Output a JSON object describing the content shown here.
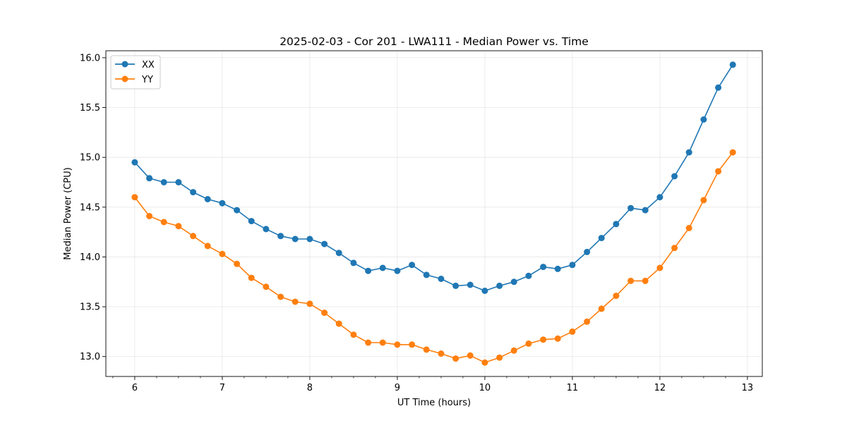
{
  "chart_data": {
    "type": "line",
    "title": "2025-02-03 - Cor 201 - LWA111 - Median Power vs. Time",
    "xlabel": "UT Time (hours)",
    "ylabel": "Median Power (CPU)",
    "xlim": [
      5.67,
      13.17
    ],
    "ylim": [
      12.8,
      16.07
    ],
    "grid": true,
    "legend_position": "top-left",
    "x_ticks": [
      6,
      7,
      8,
      9,
      10,
      11,
      12,
      13
    ],
    "y_ticks": [
      13.0,
      13.5,
      14.0,
      14.5,
      15.0,
      15.5,
      16.0
    ],
    "y_tick_labels": [
      "13.0",
      "13.5",
      "14.0",
      "14.5",
      "15.0",
      "15.5",
      "16.0"
    ],
    "x": [
      6.0,
      6.167,
      6.333,
      6.5,
      6.667,
      6.833,
      7.0,
      7.167,
      7.333,
      7.5,
      7.667,
      7.833,
      8.0,
      8.167,
      8.333,
      8.5,
      8.667,
      8.833,
      9.0,
      9.167,
      9.333,
      9.5,
      9.667,
      9.833,
      10.0,
      10.167,
      10.333,
      10.5,
      10.667,
      10.833,
      11.0,
      11.167,
      11.333,
      11.5,
      11.667,
      11.833,
      12.0,
      12.167,
      12.333,
      12.5,
      12.667,
      12.833
    ],
    "series": [
      {
        "name": "XX",
        "color": "#1f77b4",
        "values": [
          14.95,
          14.79,
          14.75,
          14.75,
          14.65,
          14.58,
          14.54,
          14.47,
          14.36,
          14.28,
          14.21,
          14.18,
          14.18,
          14.13,
          14.04,
          13.94,
          13.86,
          13.89,
          13.86,
          13.92,
          13.82,
          13.78,
          13.71,
          13.72,
          13.66,
          13.71,
          13.75,
          13.81,
          13.9,
          13.88,
          13.92,
          14.05,
          14.19,
          14.33,
          14.49,
          14.47,
          14.6,
          14.81,
          15.05,
          15.38,
          15.7,
          15.93
        ]
      },
      {
        "name": "YY",
        "color": "#ff7f0e",
        "values": [
          14.6,
          14.41,
          14.35,
          14.31,
          14.21,
          14.11,
          14.03,
          13.93,
          13.79,
          13.7,
          13.6,
          13.55,
          13.53,
          13.44,
          13.33,
          13.22,
          13.14,
          13.14,
          13.12,
          13.12,
          13.07,
          13.03,
          12.98,
          13.01,
          12.94,
          12.99,
          13.06,
          13.13,
          13.17,
          13.18,
          13.25,
          13.35,
          13.48,
          13.61,
          13.76,
          13.76,
          13.89,
          14.09,
          14.29,
          14.57,
          14.86,
          15.05
        ]
      }
    ]
  }
}
